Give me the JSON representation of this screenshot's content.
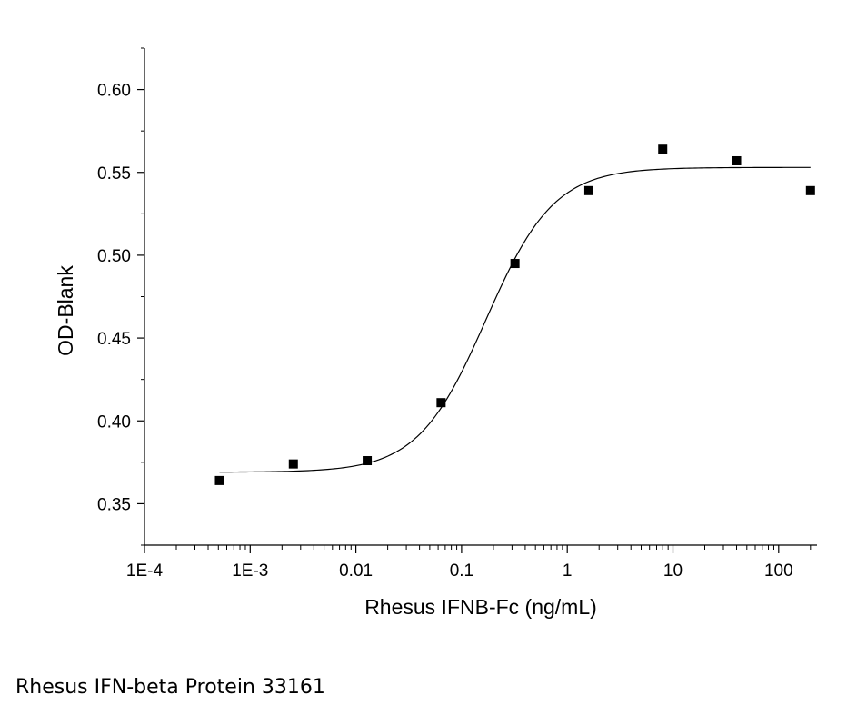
{
  "caption": "Rhesus IFN-beta Protein 33161",
  "chart_data": {
    "type": "scatter",
    "title": "",
    "xlabel": "Rhesus IFNB-Fc (ng/mL)",
    "ylabel": "OD-Blank",
    "xscale": "log",
    "xlim": [
      0.0001,
      220
    ],
    "ylim": [
      0.325,
      0.625
    ],
    "grid": false,
    "x_ticks": [
      {
        "value": 0.0001,
        "label": "1E-4"
      },
      {
        "value": 0.001,
        "label": "1E-3"
      },
      {
        "value": 0.01,
        "label": "0.01"
      },
      {
        "value": 0.1,
        "label": "0.1"
      },
      {
        "value": 1,
        "label": "1"
      },
      {
        "value": 10,
        "label": "10"
      },
      {
        "value": 100,
        "label": "100"
      }
    ],
    "y_ticks": [
      {
        "value": 0.35,
        "label": "0.35"
      },
      {
        "value": 0.4,
        "label": "0.40"
      },
      {
        "value": 0.45,
        "label": "0.45"
      },
      {
        "value": 0.5,
        "label": "0.50"
      },
      {
        "value": 0.55,
        "label": "0.55"
      },
      {
        "value": 0.6,
        "label": "0.60"
      }
    ],
    "points": [
      {
        "x": 0.000512,
        "y": 0.364
      },
      {
        "x": 0.00256,
        "y": 0.374
      },
      {
        "x": 0.0128,
        "y": 0.376
      },
      {
        "x": 0.064,
        "y": 0.411
      },
      {
        "x": 0.32,
        "y": 0.495
      },
      {
        "x": 1.6,
        "y": 0.539
      },
      {
        "x": 8,
        "y": 0.564
      },
      {
        "x": 40,
        "y": 0.557
      },
      {
        "x": 200,
        "y": 0.539
      }
    ],
    "fit_curve": {
      "model": "4PL",
      "bottom": 0.369,
      "top": 0.553,
      "ec50": 0.17,
      "hill": 1.35
    }
  }
}
